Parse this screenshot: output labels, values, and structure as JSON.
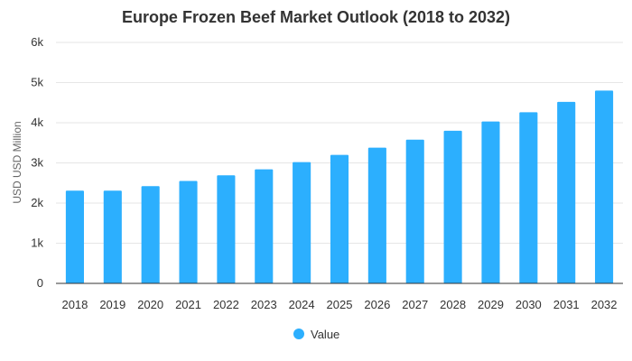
{
  "chart_data": {
    "type": "bar",
    "title": "Europe Frozen Beef Market Outlook (2018 to 2032)",
    "xlabel": "",
    "ylabel": "USD USD Million",
    "categories": [
      "2018",
      "2019",
      "2020",
      "2021",
      "2022",
      "2023",
      "2024",
      "2025",
      "2026",
      "2027",
      "2028",
      "2029",
      "2030",
      "2031",
      "2032"
    ],
    "series": [
      {
        "name": "Value",
        "color": "#2caffe",
        "values": [
          2310,
          2310,
          2420,
          2550,
          2690,
          2840,
          3020,
          3200,
          3380,
          3580,
          3800,
          4030,
          4260,
          4520,
          4800
        ]
      }
    ],
    "ylim": [
      0,
      6000
    ],
    "yticks": [
      0,
      1000,
      2000,
      3000,
      4000,
      5000,
      6000
    ],
    "ytick_labels": [
      "0",
      "1k",
      "2k",
      "3k",
      "4k",
      "5k",
      "6k"
    ],
    "grid": true,
    "legend_position": "bottom-center"
  }
}
